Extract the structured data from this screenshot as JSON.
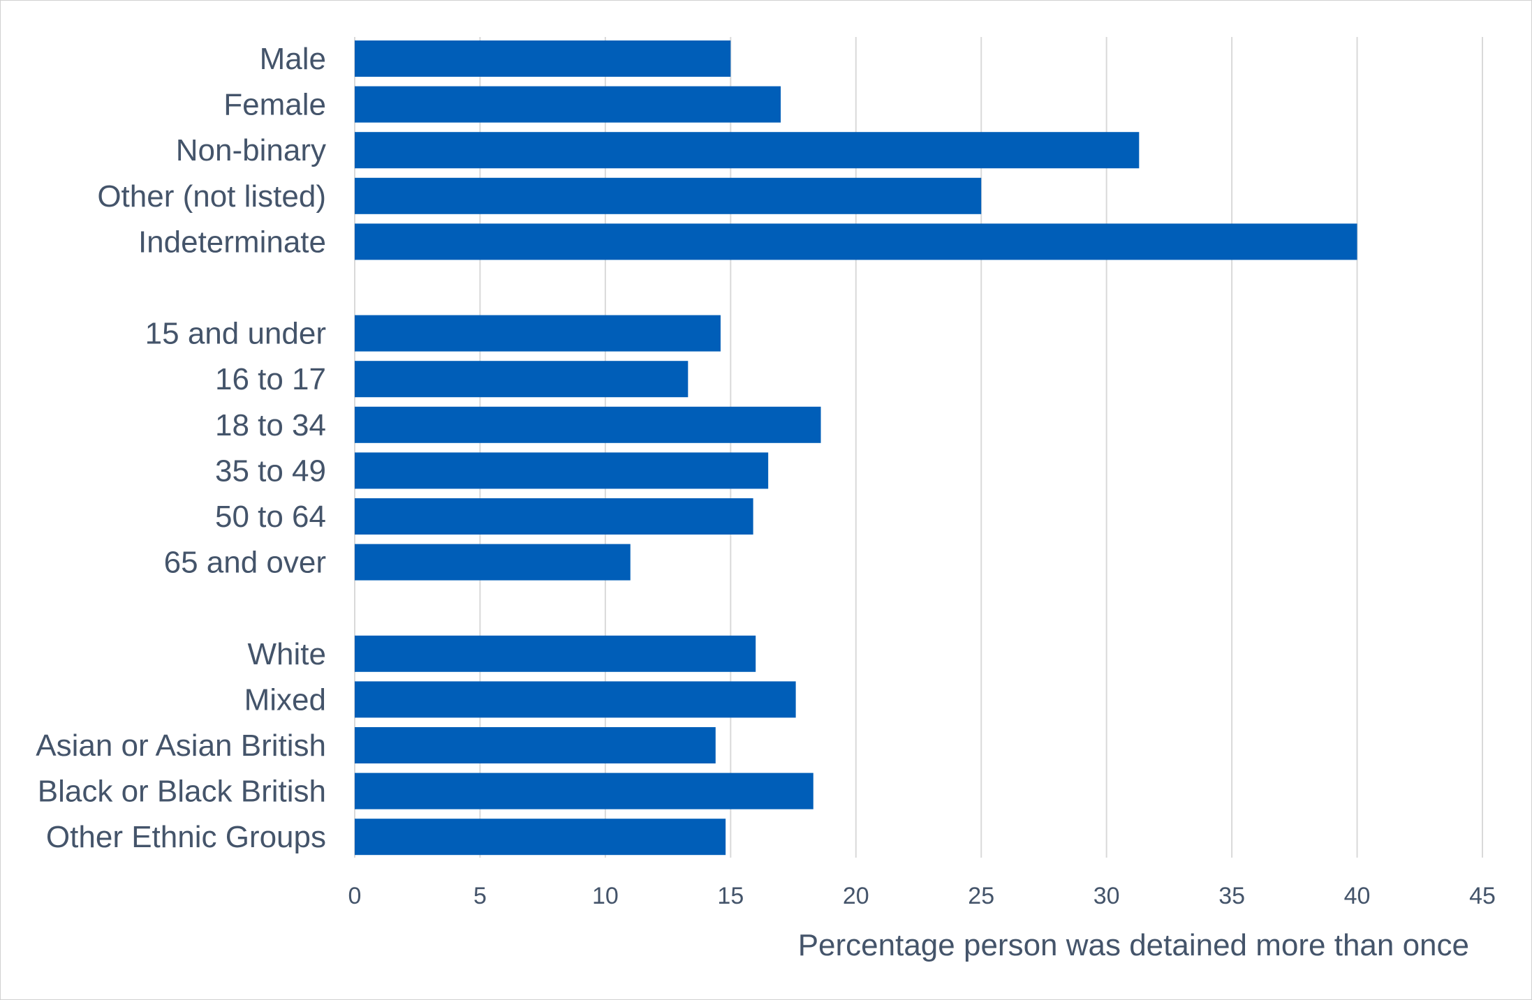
{
  "chart_data": {
    "type": "bar",
    "orientation": "horizontal",
    "title": "",
    "xlabel": "Percentage person was detained more than once",
    "ylabel": "",
    "xlim": [
      0,
      45
    ],
    "xticks": [
      0,
      5,
      10,
      15,
      20,
      25,
      30,
      35,
      40,
      45
    ],
    "grid": "vertical",
    "legend": "none",
    "bar_color": "#005eb8",
    "groups": [
      {
        "categories": [
          "Male",
          "Female",
          "Non-binary",
          "Other (not listed)",
          "Indeterminate"
        ],
        "values": [
          15.0,
          17.0,
          31.3,
          25.0,
          40.0
        ]
      },
      {
        "categories": [
          "15 and under",
          "16 to 17",
          "18 to 34",
          "35 to 49",
          "50 to 64",
          "65 and over"
        ],
        "values": [
          14.6,
          13.3,
          18.6,
          16.5,
          15.9,
          11.0
        ]
      },
      {
        "categories": [
          "White",
          "Mixed",
          "Asian or Asian British",
          "Black or Black British",
          "Other Ethnic Groups"
        ],
        "values": [
          16.0,
          17.6,
          14.4,
          18.3,
          14.8
        ]
      }
    ]
  }
}
